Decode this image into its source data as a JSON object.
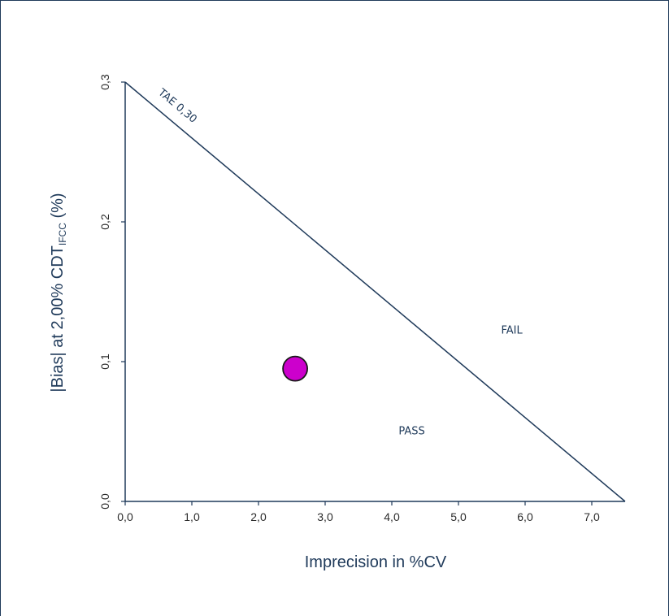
{
  "chart_data": {
    "type": "scatter",
    "xlabel": "Imprecision in %CV",
    "ylabel_main": "|Bias| at 2,00% CDT",
    "ylabel_sub": "IFCC",
    "ylabel_unit": " (%)",
    "xlim": [
      0,
      7.5
    ],
    "ylim": [
      0,
      0.3
    ],
    "xticks": [
      "0,0",
      "1,0",
      "2,0",
      "3,0",
      "4,0",
      "5,0",
      "6,0",
      "7,0"
    ],
    "xtick_values": [
      0,
      1,
      2,
      3,
      4,
      5,
      6,
      7
    ],
    "yticks": [
      "0,0",
      "0,1",
      "0,2",
      "0,3"
    ],
    "ytick_values": [
      0,
      0.1,
      0.2,
      0.3
    ],
    "limit_line": {
      "label": "TAE 0,30",
      "from": [
        0,
        0.3
      ],
      "to": [
        7.5,
        0
      ]
    },
    "regions": [
      {
        "label": "FAIL",
        "x": 5.8,
        "y": 0.12
      },
      {
        "label": "PASS",
        "x": 4.3,
        "y": 0.048
      }
    ],
    "points": [
      {
        "x": 2.55,
        "y": 0.095
      }
    ],
    "colors": {
      "axis": "#1f3a5a",
      "point_fill": "#cc00cc",
      "point_stroke": "#1a1a1a",
      "text": "#2b2b2b"
    },
    "grid": false
  }
}
